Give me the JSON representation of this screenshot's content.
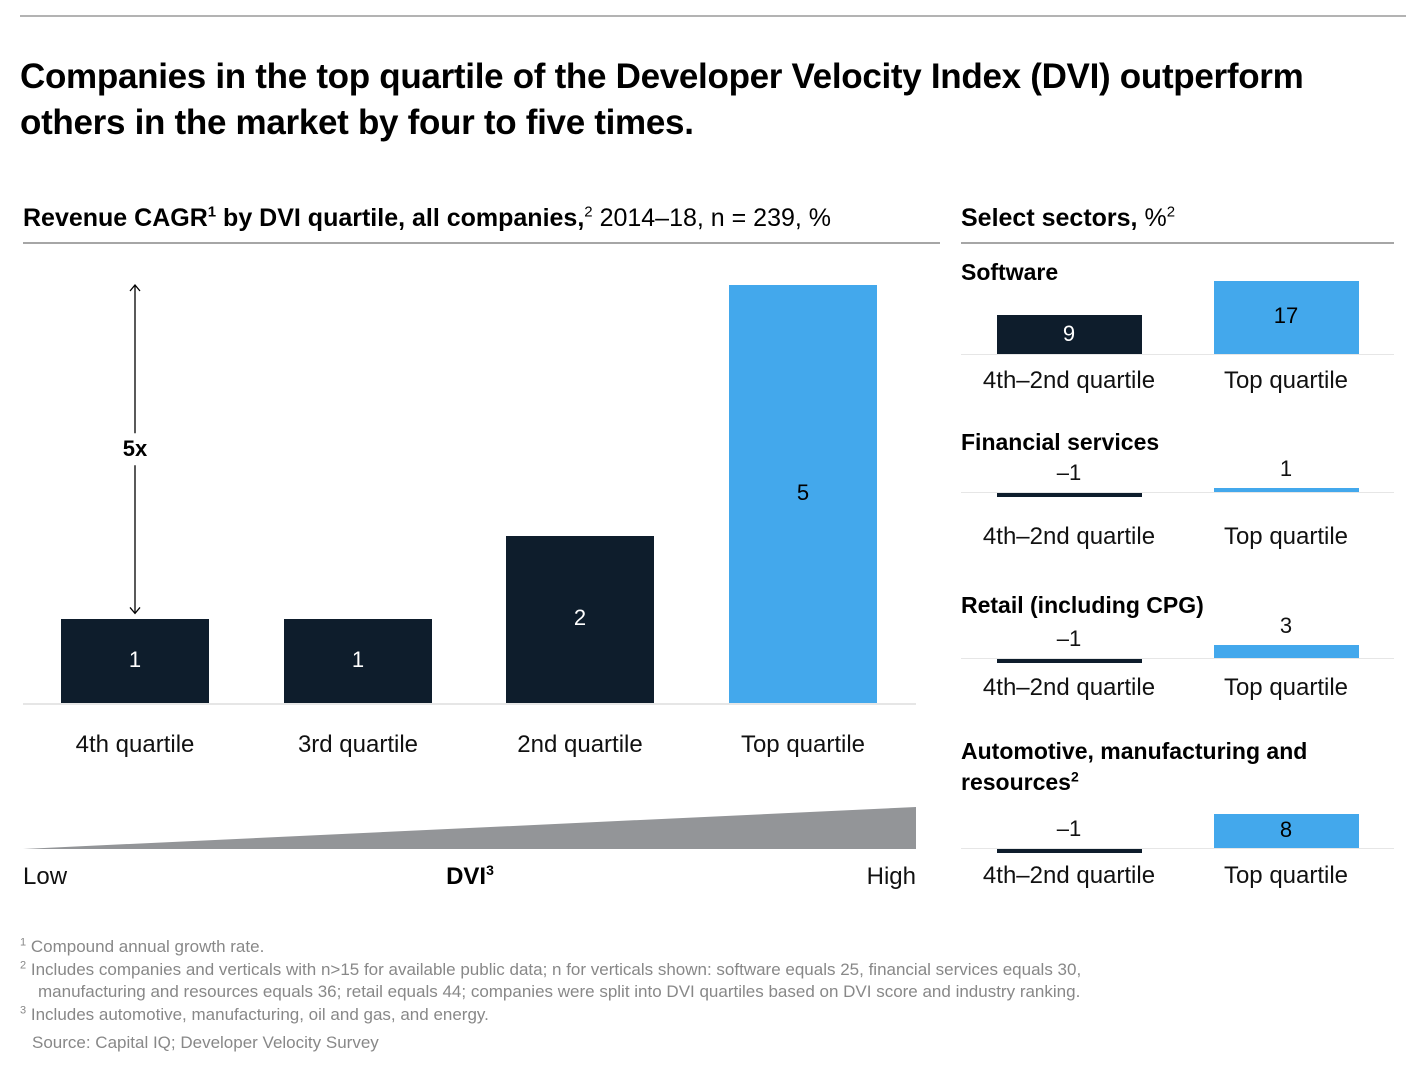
{
  "title": "Companies in the top quartile of the Developer Velocity Index (DVI) outperform others in the market by four to five times.",
  "colors": {
    "dark_bar": "#0e1d2c",
    "accent_bar": "#43a8ec",
    "wedge": "#939598",
    "rule": "#a6a6a6"
  },
  "chart_data": [
    {
      "type": "bar",
      "title": "Revenue CAGR by DVI quartile, all companies, 2014–18, n = 239, %",
      "title_parts": {
        "bold": "Revenue CAGR",
        "sup1": "1",
        "bold2": " by DVI quartile, all companies,",
        "sup2": "2",
        "regular": " 2014–18, n = 239, %"
      },
      "categories": [
        "4th quartile",
        "3rd quartile",
        "2nd quartile",
        "Top quartile"
      ],
      "values": [
        1,
        1,
        2,
        5
      ],
      "value_labels": [
        "1",
        "1",
        "2",
        "5"
      ],
      "highlight_index": 3,
      "ylim": [
        0,
        5
      ],
      "annotation": {
        "label": "5x",
        "from_value": 1,
        "to_value": 5
      },
      "xaxis_scale": {
        "low_label": "Low",
        "center_label": "DVI",
        "center_sup": "3",
        "high_label": "High"
      },
      "grid": false
    },
    {
      "type": "bar",
      "title": "Select sectors, %",
      "title_parts": {
        "bold": "Select sectors,",
        "regular": " %",
        "sup": "2"
      },
      "categories": [
        "4th–2nd quartile",
        "Top quartile"
      ],
      "panels": [
        {
          "name": "Software",
          "sup": "",
          "values": [
            9,
            17
          ],
          "value_labels": [
            "9",
            "17"
          ]
        },
        {
          "name": "Financial services",
          "sup": "",
          "values": [
            -1,
            1
          ],
          "value_labels": [
            "–1",
            "1"
          ]
        },
        {
          "name": "Retail (including CPG)",
          "sup": "",
          "values": [
            -1,
            3
          ],
          "value_labels": [
            "–1",
            "3"
          ]
        },
        {
          "name": "Automotive, manufacturing and resources",
          "sup": "2",
          "values": [
            -1,
            8
          ],
          "value_labels": [
            "–1",
            "8"
          ]
        }
      ]
    }
  ],
  "footnotes": [
    {
      "sup": "1",
      "text": "Compound annual growth rate."
    },
    {
      "sup": "2",
      "text": "Includes companies and verticals with n>15 for available public data; n for verticals shown: software equals 25, financial services equals 30,",
      "text2": "manufacturing and resources equals 36; retail equals 44; companies were split into DVI quartiles based on DVI score and industry ranking."
    },
    {
      "sup": "3",
      "text": "Includes automotive, manufacturing, oil and gas, and energy."
    }
  ],
  "source": "Source: Capital IQ; Developer Velocity Survey"
}
